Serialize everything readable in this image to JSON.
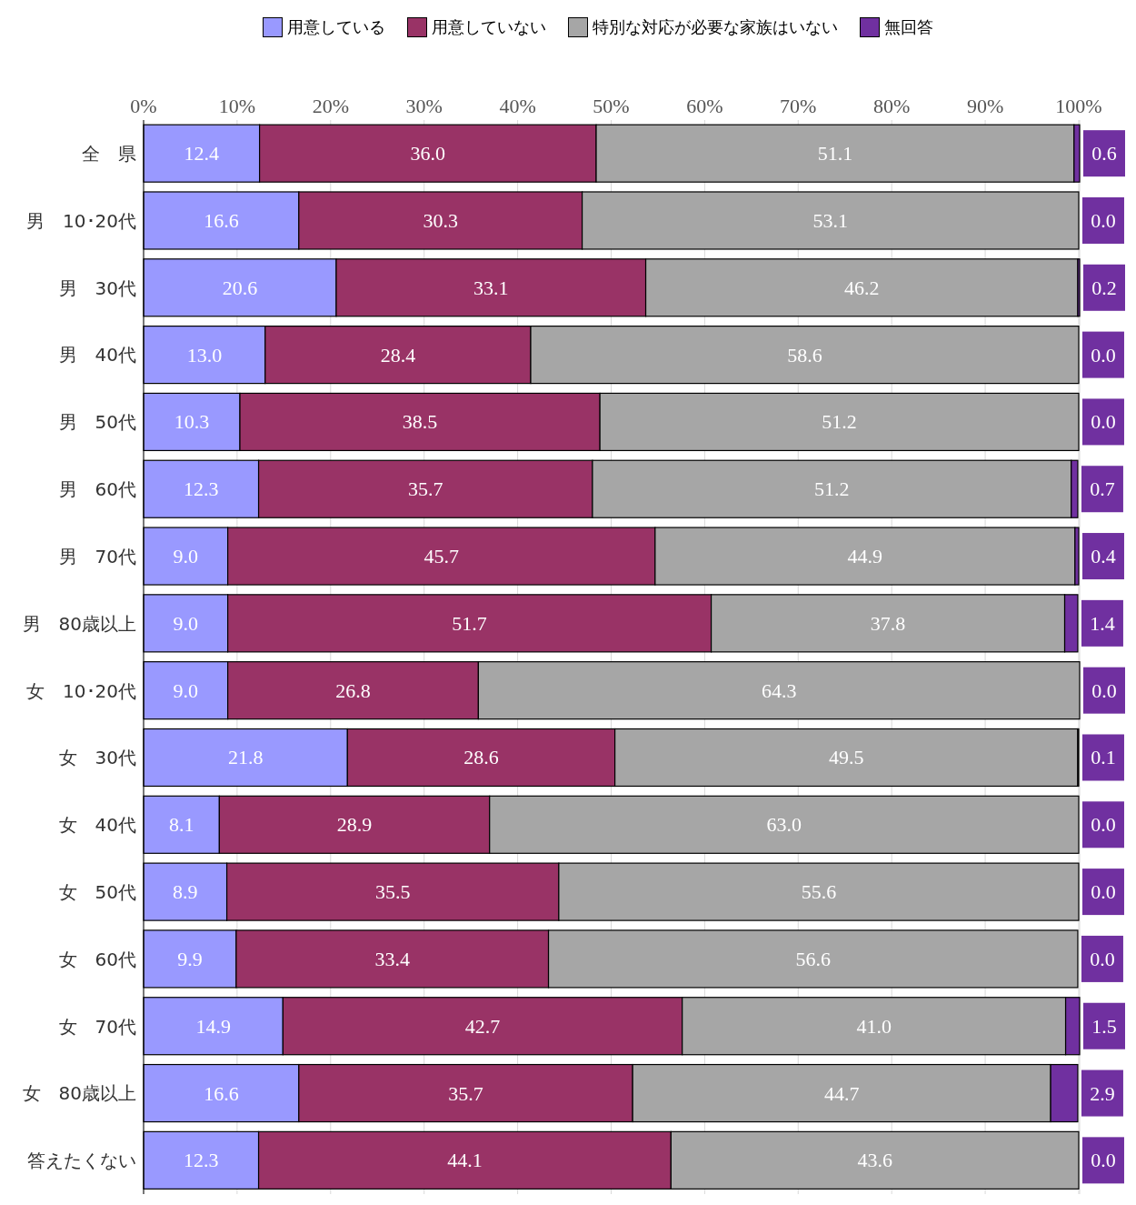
{
  "chart_data": {
    "type": "bar",
    "orientation": "horizontal",
    "stacked": true,
    "categories": [
      "全　県",
      "男　10･20代",
      "男　30代",
      "男　40代",
      "男　50代",
      "男　60代",
      "男　70代",
      "男　80歳以上",
      "女　10･20代",
      "女　30代",
      "女　40代",
      "女　50代",
      "女　60代",
      "女　70代",
      "女　80歳以上",
      "答えたくない"
    ],
    "series": [
      {
        "name": "用意している",
        "color": "#9999ff",
        "values": [
          12.4,
          16.6,
          20.6,
          13.0,
          10.3,
          12.3,
          9.0,
          9.0,
          9.0,
          21.8,
          8.1,
          8.9,
          9.9,
          14.9,
          16.6,
          12.3
        ],
        "value_labels": [
          "12.4",
          "16.6",
          "20.6",
          "13.0",
          "10.3",
          "12.3",
          "9.0",
          "9.0",
          "9.0",
          "21.8",
          "8.1",
          "8.9",
          "9.9",
          "14.9",
          "16.6",
          "12.3"
        ]
      },
      {
        "name": "用意していない",
        "color": "#993366",
        "values": [
          36.0,
          30.3,
          33.1,
          28.4,
          38.5,
          35.7,
          45.7,
          51.7,
          26.8,
          28.6,
          28.9,
          35.5,
          33.4,
          42.7,
          35.7,
          44.1
        ],
        "value_labels": [
          "36.0",
          "30.3",
          "33.1",
          "28.4",
          "38.5",
          "35.7",
          "45.7",
          "51.7",
          "26.8",
          "28.6",
          "28.9",
          "35.5",
          "33.4",
          "42.7",
          "35.7",
          "44.1"
        ]
      },
      {
        "name": "特別な対応が必要な家族はいない",
        "color": "#a6a6a6",
        "values": [
          51.1,
          53.1,
          46.2,
          58.6,
          51.2,
          51.2,
          44.9,
          37.8,
          64.3,
          49.5,
          63.0,
          55.6,
          56.6,
          41.0,
          44.7,
          43.6
        ],
        "value_labels": [
          "51.1",
          "53.1",
          "46.2",
          "58.6",
          "51.2",
          "51.2",
          "44.9",
          "37.8",
          "64.3",
          "49.5",
          "63.0",
          "55.6",
          "56.6",
          "41.0",
          "44.7",
          "43.6"
        ]
      },
      {
        "name": "無回答",
        "color": "#7030a0",
        "values": [
          0.6,
          0.0,
          0.2,
          0.0,
          0.0,
          0.7,
          0.4,
          1.4,
          0.0,
          0.1,
          0.0,
          0.0,
          0.0,
          1.5,
          2.9,
          0.0
        ],
        "value_labels": [
          "0.6",
          "0.0",
          "0.2",
          "0.0",
          "0.0",
          "0.7",
          "0.4",
          "1.4",
          "0.0",
          "0.1",
          "0.0",
          "0.0",
          "0.0",
          "1.5",
          "2.9",
          "0.0"
        ]
      }
    ],
    "xlim": [
      0,
      100
    ],
    "xticks": [
      {
        "value": 0,
        "label": "0%"
      },
      {
        "value": 10,
        "label": "10%"
      },
      {
        "value": 20,
        "label": "20%"
      },
      {
        "value": 30,
        "label": "30%"
      },
      {
        "value": 40,
        "label": "40%"
      },
      {
        "value": 50,
        "label": "50%"
      },
      {
        "value": 60,
        "label": "60%"
      },
      {
        "value": 70,
        "label": "70%"
      },
      {
        "value": 80,
        "label": "80%"
      },
      {
        "value": 90,
        "label": "90%"
      },
      {
        "value": 100,
        "label": "100%"
      }
    ],
    "grid": "x",
    "legend": "top"
  }
}
